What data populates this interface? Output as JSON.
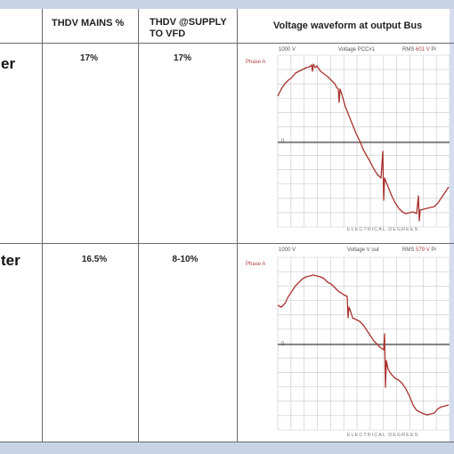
{
  "table": {
    "headers": {
      "col_mains": "THDV MAINS %",
      "col_supply_line1": "THDV @SUPPLY",
      "col_supply_line2": "TO  VFD",
      "col_wave": "Voltage waveform at output Bus"
    },
    "rows": [
      {
        "label": "er",
        "thdv_mains": "17%",
        "thdv_supply": "17%",
        "scope": {
          "scale": "1000 V",
          "title": "Voltage PCC#1",
          "rms_label": "RMS",
          "rms_value": "601 V",
          "extra": "Pr",
          "phase": "Phase A",
          "zero_label": "0",
          "x_caption": "ELECTRICAL DEGREES"
        }
      },
      {
        "label": "ter",
        "thdv_mains": "16.5%",
        "thdv_supply": "8-10%",
        "scope": {
          "scale": "1000 V",
          "title": "Voltage V out",
          "rms_label": "RMS",
          "rms_value": "579 V",
          "extra": "Pr",
          "phase": "Phase A",
          "zero_label": "0",
          "x_caption": "ELECTRICAL DEGREES"
        }
      }
    ]
  },
  "colors": {
    "waveform": "#a8322e",
    "grid": "#c8c8c8",
    "zero_axis": "#444444",
    "frame_tint": "#c9d3e6"
  }
}
